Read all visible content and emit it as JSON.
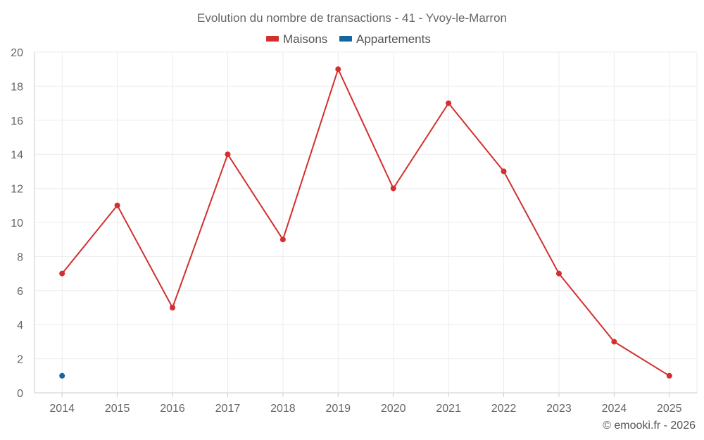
{
  "chart_data": {
    "type": "line",
    "title": "Evolution du nombre de transactions - 41 - Yvoy-le-Marron",
    "categories": [
      "2014",
      "2015",
      "2016",
      "2017",
      "2018",
      "2019",
      "2020",
      "2021",
      "2022",
      "2023",
      "2024",
      "2025"
    ],
    "series": [
      {
        "name": "Maisons",
        "color": "#d32f2f",
        "values": [
          7,
          11,
          5,
          14,
          9,
          19,
          12,
          17,
          13,
          7,
          3,
          1
        ]
      },
      {
        "name": "Appartements",
        "color": "#1565a0",
        "values": [
          1,
          null,
          null,
          null,
          null,
          null,
          null,
          null,
          null,
          null,
          null,
          null
        ]
      }
    ],
    "ylim": [
      0,
      20
    ],
    "yticks": [
      0,
      2,
      4,
      6,
      8,
      10,
      12,
      14,
      16,
      18,
      20
    ],
    "xlabel": "",
    "ylabel": "",
    "grid": true,
    "legend": "top-center"
  },
  "credit": "© emooki.fr - 2026"
}
